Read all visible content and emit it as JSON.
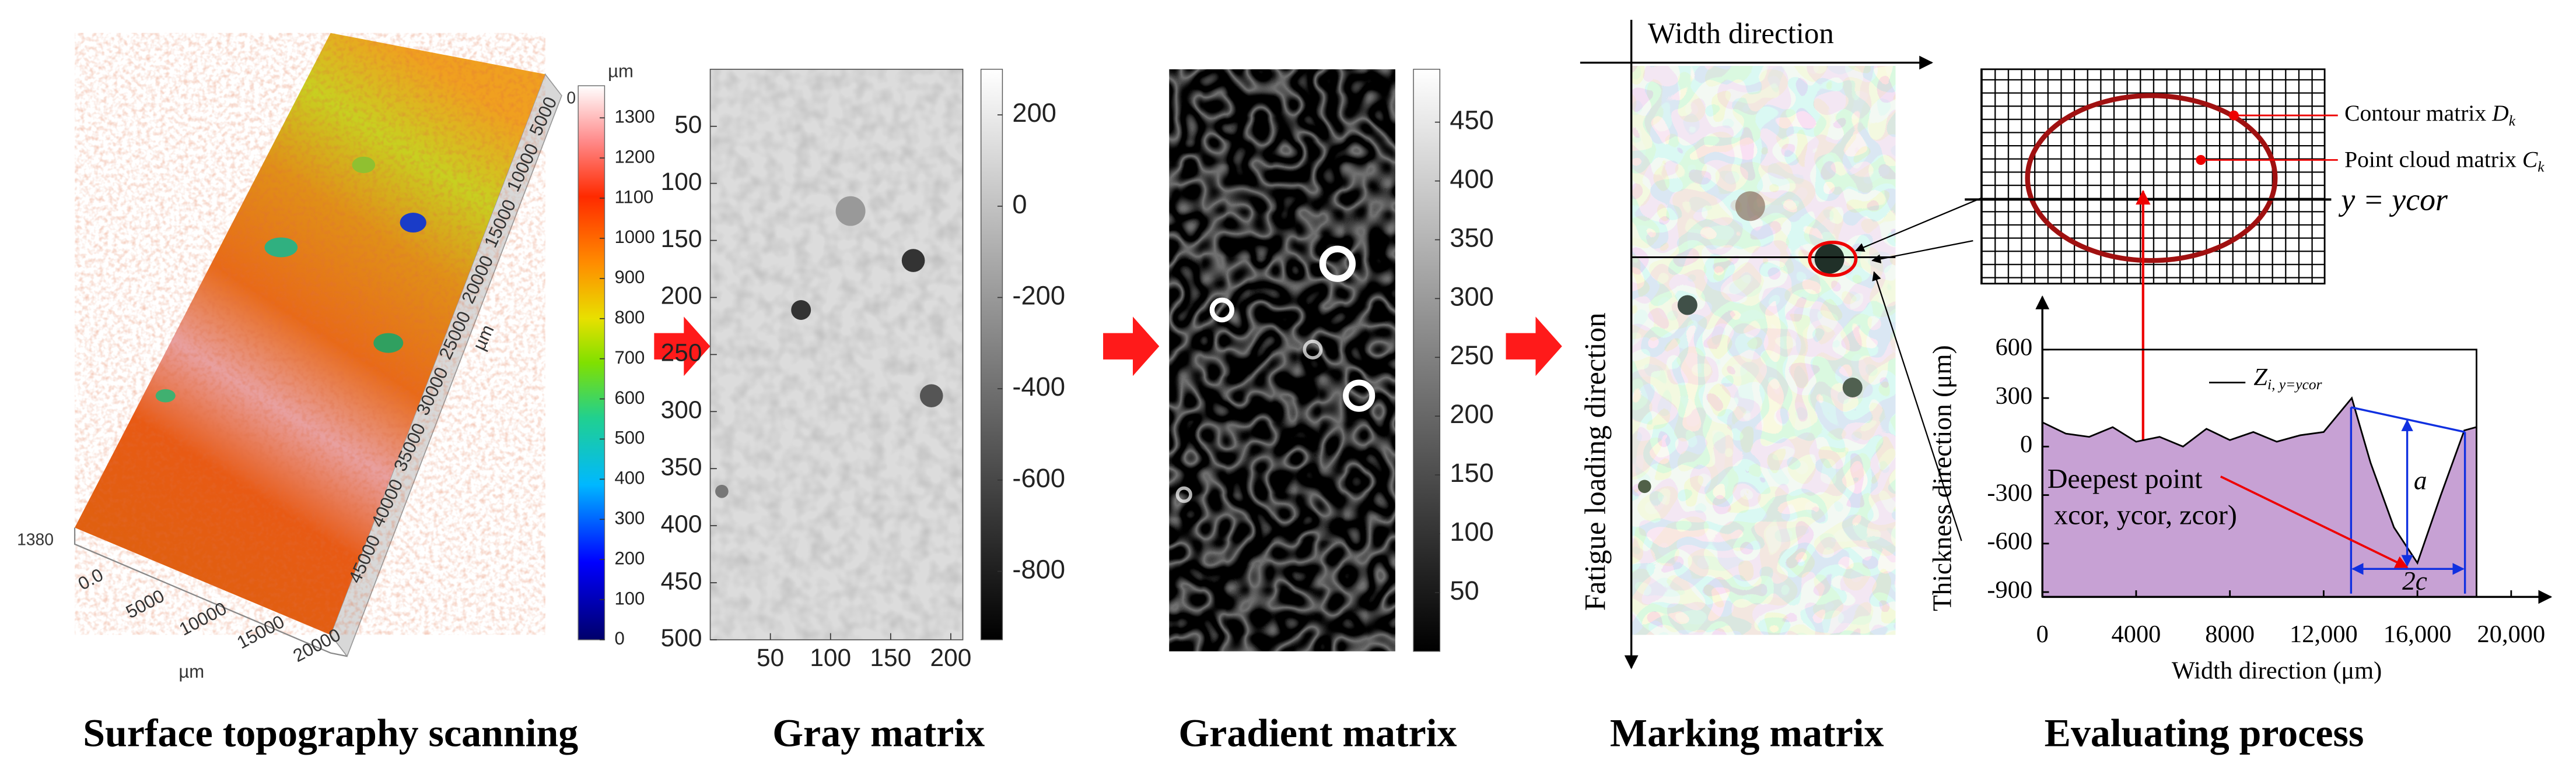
{
  "panels": [
    {
      "caption": "Surface topography scanning",
      "x_unit": "µm",
      "y_unit": "µm",
      "x_ticks": [
        "0.0",
        "5000",
        "10000",
        "15000",
        "20000"
      ],
      "y_ticks": [
        "5000",
        "10000",
        "15000",
        "20000",
        "25000",
        "30000",
        "35000",
        "40000",
        "45000"
      ],
      "z_ticks": [
        "1380",
        "0"
      ],
      "colorbar": {
        "label": "µm",
        "range": [
          0,
          1380
        ],
        "ticks": [
          0,
          100,
          200,
          300,
          400,
          500,
          600,
          700,
          800,
          900,
          1000,
          1100,
          1200,
          1300
        ]
      }
    },
    {
      "caption": "Gray matrix",
      "xlim": [
        0,
        210
      ],
      "ylim": [
        0,
        500
      ],
      "xticks": [
        50,
        100,
        150,
        200
      ],
      "yticks": [
        50,
        100,
        150,
        200,
        250,
        300,
        350,
        400,
        450,
        500
      ],
      "colorbar": {
        "range": [
          -950,
          300
        ],
        "ticks": [
          200,
          0,
          -200,
          -400,
          -600,
          -800
        ]
      }
    },
    {
      "caption": "Gradient matrix",
      "colorbar": {
        "range": [
          0,
          495
        ],
        "ticks": [
          450,
          400,
          350,
          300,
          250,
          200,
          150,
          100,
          50
        ]
      }
    },
    {
      "caption": "Marking matrix",
      "width_label": "Width direction",
      "loading_label": "Fatigue loading direction"
    },
    {
      "caption": "Evaluating process",
      "contour": {
        "text": "Contour matrix",
        "symbol": "D",
        "sub": "k"
      },
      "point_cloud": {
        "text": "Point cloud matrix",
        "symbol": "C",
        "sub": "k"
      },
      "line_label": "y = ycor"
    }
  ],
  "chart_data": {
    "type": "area",
    "x": [
      0,
      1000,
      2000,
      3000,
      4000,
      5000,
      6000,
      7000,
      8000,
      9000,
      10000,
      11000,
      12000,
      13200,
      14000,
      15000,
      16000,
      17000,
      18000,
      18500
    ],
    "series": [
      {
        "name": "Z",
        "name_sub": "i, y=ycor",
        "color": "#c7a1d4",
        "values": [
          150,
          80,
          60,
          120,
          30,
          60,
          0,
          110,
          40,
          90,
          30,
          70,
          90,
          300,
          -100,
          -500,
          -720,
          -300,
          100,
          120
        ]
      }
    ],
    "xlim": [
      0,
      20000
    ],
    "xticks": [
      0,
      4000,
      8000,
      {
        "value": 12000,
        "label": "12,000"
      },
      {
        "value": 16000,
        "label": "16,000"
      },
      {
        "value": 20000,
        "label": "20,000"
      }
    ],
    "ylim": [
      -930,
      600
    ],
    "yticks": [
      600,
      300,
      0,
      -300,
      -600,
      -900
    ],
    "xlabel": "Width direction (μm)",
    "ylabel": "Thickness direction (μm)",
    "annotations": {
      "deepest": "Deepest point",
      "coords": "xcor, ycor, zcor)",
      "depth": "a",
      "length": "2c"
    }
  }
}
